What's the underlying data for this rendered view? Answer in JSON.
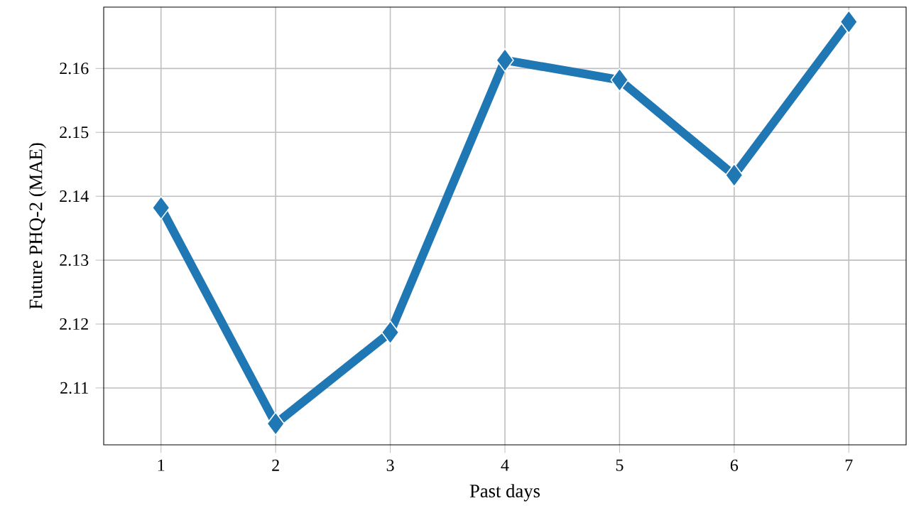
{
  "chart_data": {
    "type": "line",
    "xlabel": "Past days",
    "ylabel": "Future PHQ-2 (MAE)",
    "x": [
      1,
      2,
      3,
      4,
      5,
      6,
      7
    ],
    "series": [
      {
        "color": "#1f77b4",
        "values": [
          2.1382,
          2.1044,
          2.1187,
          2.1613,
          2.1582,
          2.1433,
          2.1673
        ]
      }
    ],
    "xlim": [
      0.5,
      7.5
    ],
    "ylim": [
      2.1011,
      2.1696
    ],
    "xticks": [
      1,
      2,
      3,
      4,
      5,
      6,
      7
    ],
    "yticks": [
      2.11,
      2.12,
      2.13,
      2.14,
      2.15,
      2.16
    ],
    "grid": true,
    "marker": "diamond",
    "line_style": "solid"
  }
}
